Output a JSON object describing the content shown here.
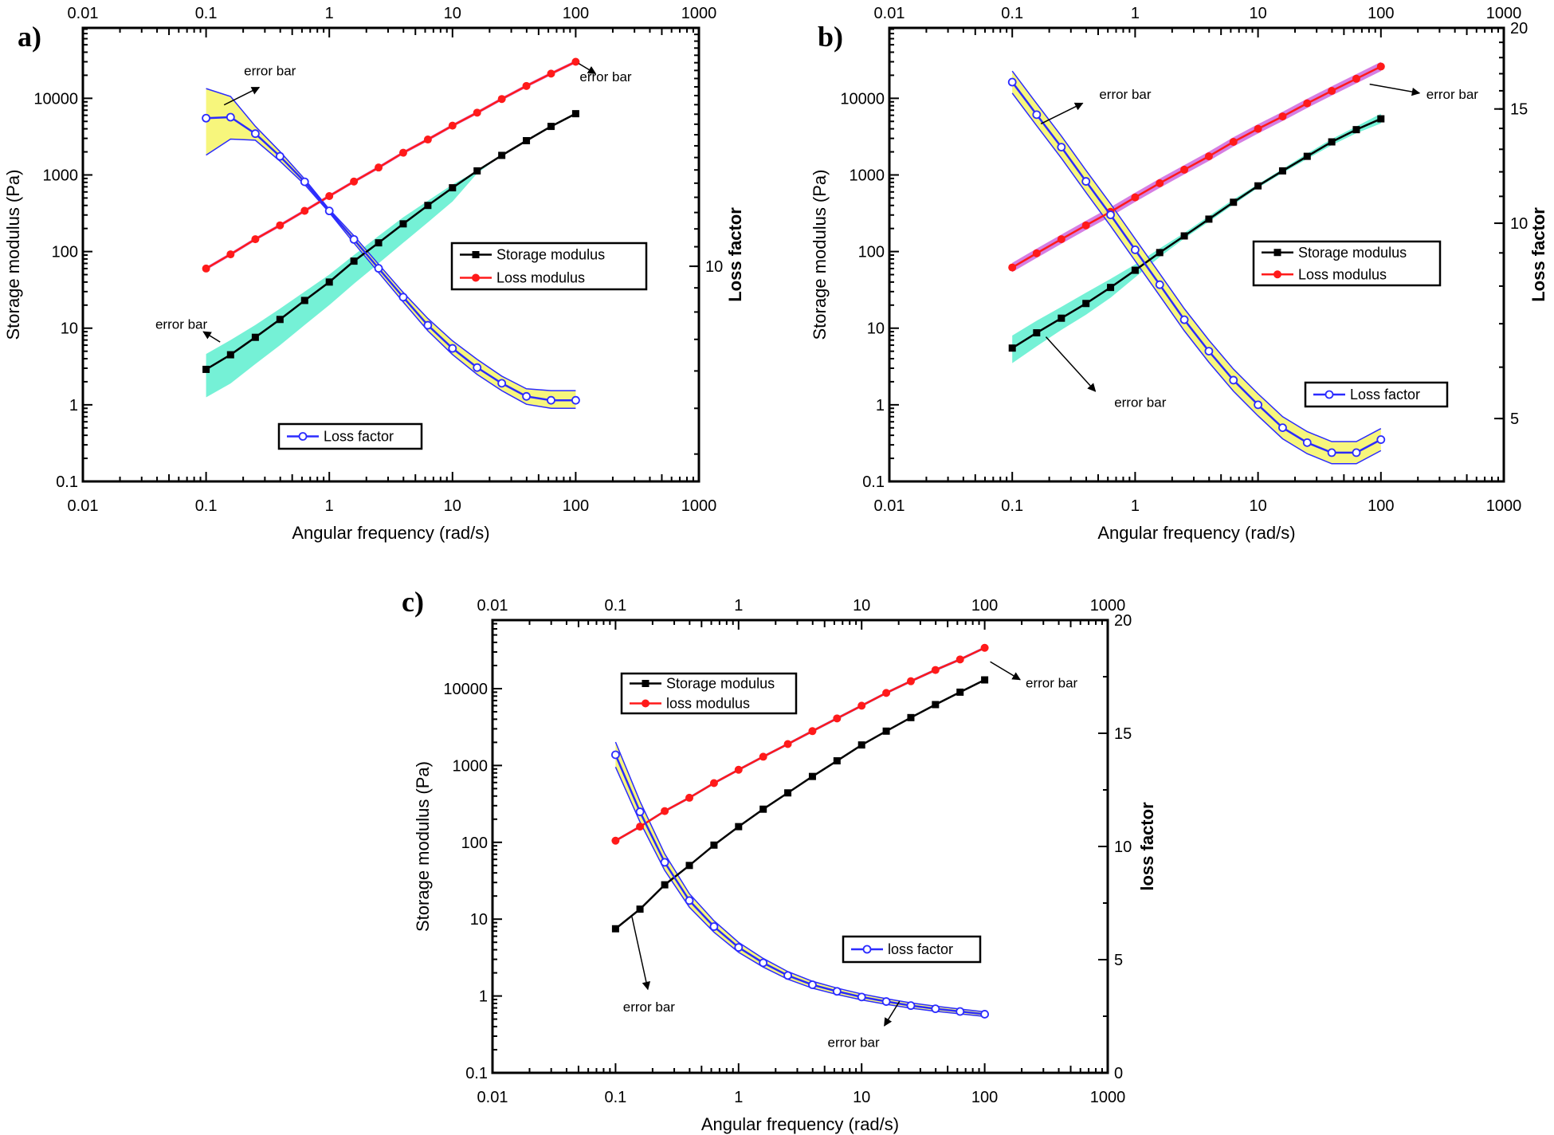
{
  "chart_data": [
    {
      "type": "line",
      "panel_label": "a)",
      "xlabel": "Angular frequency (rad/s)",
      "ylabel": "Storage modulus (Pa)",
      "y2label": "Loss factor",
      "xscale": "log",
      "xlim": [
        0.01,
        1000
      ],
      "xticks": [
        "0.01",
        "0.1",
        "1",
        "10",
        "100",
        "1000"
      ],
      "yscale": "log",
      "ylim": [
        0.1,
        83000
      ],
      "yticks": [
        "0.1",
        "1",
        "10",
        "100",
        "1000",
        "10000"
      ],
      "y2scale": "log",
      "y2lim": [
        3.5,
        32
      ],
      "y2ticks": [
        "10"
      ],
      "x": [
        0.1,
        0.158,
        0.251,
        0.398,
        0.631,
        1,
        1.585,
        2.512,
        3.981,
        6.31,
        10,
        15.85,
        25.12,
        39.81,
        63.1,
        100
      ],
      "series": [
        {
          "name": "Storage modulus",
          "axis": "left",
          "color": "#000000",
          "marker": "square",
          "values": [
            2.9,
            4.5,
            7.6,
            13,
            23,
            40,
            75,
            130,
            230,
            400,
            680,
            1130,
            1800,
            2800,
            4300,
            6300
          ],
          "band": {
            "color": "#66f0d2",
            "edge": "none",
            "upper": [
              4.6,
              7,
              11,
              18,
              30,
              50,
              90,
              160,
              280,
              460,
              750,
              1130,
              1800,
              2800,
              4300,
              6300
            ],
            "lower": [
              1.25,
              1.9,
              3.4,
              6,
              11,
              20,
              38,
              70,
              130,
              240,
              450,
              1050,
              1800,
              2800,
              4300,
              6300
            ]
          }
        },
        {
          "name": "Loss modulus",
          "axis": "left",
          "color": "#ff1a1a",
          "marker": "circle",
          "values": [
            60,
            92,
            145,
            220,
            340,
            530,
            820,
            1250,
            1950,
            2900,
            4400,
            6500,
            9800,
            14500,
            21000,
            30000
          ],
          "band": {
            "color": "#d070e0",
            "edge": "none",
            "factor": 1.05
          }
        },
        {
          "name": "Loss factor",
          "axis": "right",
          "color": "#2b2bff",
          "marker": "open-circle",
          "values": [
            20.6,
            20.7,
            19.1,
            17.1,
            15.1,
            13.1,
            11.4,
            9.9,
            8.6,
            7.5,
            6.7,
            6.1,
            5.65,
            5.3,
            5.2,
            5.2
          ],
          "band": {
            "color": "#f6f56e",
            "edge": "#2b2bff",
            "upper": [
              23.8,
              22.9,
              19.8,
              17.5,
              15.3,
              13.2,
              11.6,
              10.1,
              8.8,
              7.75,
              6.95,
              6.35,
              5.85,
              5.5,
              5.45,
              5.45
            ],
            "lower": [
              17.2,
              18.6,
              18.5,
              16.7,
              14.9,
              13.0,
              11.2,
              9.7,
              8.4,
              7.3,
              6.5,
              5.9,
              5.45,
              5.1,
              5.0,
              5.0
            ]
          }
        }
      ],
      "legends": [
        [
          "Storage modulus",
          "Loss modulus"
        ],
        [
          "Loss factor"
        ]
      ],
      "annotations": [
        {
          "text": "error bar",
          "x": 0.33,
          "y": 23000,
          "arrow_from": [
            0.14,
            8200
          ],
          "arrow_to": [
            0.27,
            13900
          ]
        },
        {
          "text": "error bar",
          "x": 175,
          "y": 19300,
          "arrow_from": [
            106,
            28400
          ],
          "arrow_to": [
            145,
            21000
          ]
        },
        {
          "text": "error bar",
          "x": 0.063,
          "y": 11.3,
          "arrow_from": [
            0.13,
            6.6
          ],
          "arrow_to": [
            0.095,
            9.0
          ]
        }
      ]
    },
    {
      "type": "line",
      "panel_label": "b)",
      "xlabel": "Angular frequency (rad/s)",
      "ylabel": "Storage modulus (Pa)",
      "y2label": "Loss factor",
      "xscale": "log",
      "xlim": [
        0.01,
        1000
      ],
      "xticks": [
        "0.01",
        "0.1",
        "1",
        "10",
        "100",
        "1000"
      ],
      "yscale": "log",
      "ylim": [
        0.1,
        83000
      ],
      "yticks": [
        "0.1",
        "1",
        "10",
        "100",
        "1000",
        "10000"
      ],
      "y2scale": "log",
      "y2lim": [
        4,
        20
      ],
      "y2ticks": [
        "5",
        "10",
        "15",
        "20"
      ],
      "x": [
        0.1,
        0.158,
        0.251,
        0.398,
        0.631,
        1,
        1.585,
        2.512,
        3.981,
        6.31,
        10,
        15.85,
        25.12,
        39.81,
        63.1,
        100
      ],
      "series": [
        {
          "name": "Storage modulus",
          "axis": "left",
          "color": "#000000",
          "marker": "square",
          "values": [
            5.5,
            8.7,
            13.5,
            21,
            34,
            57,
            97,
            160,
            265,
            440,
            720,
            1130,
            1750,
            2700,
            3900,
            5400
          ],
          "band": {
            "color": "#66f0d2",
            "edge": "none",
            "upper": [
              8,
              12.5,
              19,
              29,
              44,
              68,
              110,
              175,
              290,
              480,
              760,
              1200,
              1900,
              2950,
              4300,
              6300
            ],
            "lower": [
              3.5,
              5.8,
              9.5,
              15,
              25,
              46,
              85,
              148,
              245,
              410,
              680,
              1060,
              1620,
              2450,
              3500,
              4700
            ]
          }
        },
        {
          "name": "Loss modulus",
          "axis": "left",
          "color": "#ff1a1a",
          "marker": "circle",
          "values": [
            62,
            95,
            145,
            220,
            330,
            510,
            780,
            1170,
            1750,
            2700,
            4000,
            5800,
            8600,
            12500,
            18000,
            26000
          ],
          "band": {
            "color": "#d070e0",
            "edge": "none",
            "factor": 1.15
          }
        },
        {
          "name": "Loss factor",
          "axis": "right",
          "color": "#2b2bff",
          "marker": "open-circle",
          "values": [
            16.5,
            14.7,
            13.1,
            11.6,
            10.3,
            9.1,
            8.04,
            7.1,
            6.35,
            5.73,
            5.25,
            4.84,
            4.59,
            4.43,
            4.43,
            4.64
          ],
          "band": {
            "color": "#f6f56e",
            "edge": "#2b2bff",
            "factor": 1.04
          }
        }
      ],
      "legends": [
        [
          "Storage modulus",
          "Loss modulus"
        ],
        [
          "Loss factor"
        ]
      ],
      "annotations": [
        {
          "text": "error bar",
          "x": 0.83,
          "y": 11300,
          "arrow_from": [
            0.171,
            4650
          ],
          "arrow_to": [
            0.374,
            8650
          ]
        },
        {
          "text": "error bar",
          "x": 381,
          "y": 11300,
          "arrow_from": [
            81,
            15300
          ],
          "arrow_to": [
            206,
            11700
          ]
        },
        {
          "text": "error bar",
          "x": 1.1,
          "y": 1.08,
          "arrow_from": [
            0.188,
            7.7
          ],
          "arrow_to": [
            0.475,
            1.5
          ]
        }
      ]
    },
    {
      "type": "line",
      "panel_label": "c)",
      "xlabel": "Angular frequency (rad/s)",
      "ylabel": "Storage modulus (Pa)",
      "y2label": "loss factor",
      "xscale": "log",
      "xlim": [
        0.01,
        1000
      ],
      "xticks": [
        "0.01",
        "0.1",
        "1",
        "10",
        "100",
        "1000"
      ],
      "yscale": "log",
      "ylim": [
        0.1,
        78000
      ],
      "yticks": [
        "0.1",
        "1",
        "10",
        "100",
        "1000",
        "10000"
      ],
      "y2scale": "linear",
      "y2lim": [
        0,
        20
      ],
      "y2ticks": [
        "0",
        "5",
        "10",
        "15",
        "20"
      ],
      "x": [
        0.1,
        0.158,
        0.251,
        0.398,
        0.631,
        1,
        1.585,
        2.512,
        3.981,
        6.31,
        10,
        15.85,
        25.12,
        39.81,
        63.1,
        100
      ],
      "series": [
        {
          "name": "Storage modulus",
          "axis": "left",
          "color": "#000000",
          "marker": "square",
          "values": [
            7.5,
            13.5,
            28,
            50,
            92,
            160,
            270,
            440,
            720,
            1150,
            1850,
            2800,
            4200,
            6200,
            9000,
            13000
          ]
        },
        {
          "name": "loss modulus",
          "axis": "left",
          "color": "#ff1a1a",
          "marker": "circle",
          "values": [
            105,
            160,
            255,
            380,
            590,
            880,
            1300,
            1900,
            2800,
            4100,
            6000,
            8800,
            12500,
            17500,
            24000,
            34000
          ],
          "band": {
            "color": "#5a5aff",
            "edge": "none",
            "factor": 1.04
          }
        },
        {
          "name": "loss factor",
          "axis": "right",
          "color": "#2b2bff",
          "marker": "open-circle",
          "values": [
            14.05,
            11.53,
            9.3,
            7.61,
            6.46,
            5.54,
            4.86,
            4.3,
            3.89,
            3.6,
            3.35,
            3.15,
            2.97,
            2.83,
            2.71,
            2.59
          ],
          "band": {
            "color": "#f6f56e",
            "edge": "#2b2bff",
            "factor": 1.04
          }
        }
      ],
      "legends": [
        [
          "Storage modulus",
          "loss modulus"
        ],
        [
          "loss factor"
        ]
      ],
      "annotations": [
        {
          "text": "error bar",
          "x": 350,
          "y": 12000,
          "arrow_from": [
            111,
            22400
          ],
          "arrow_to": [
            194,
            13100
          ]
        },
        {
          "text": "error bar",
          "x": 0.187,
          "y": 0.73,
          "arrow_from": [
            0.136,
            10.7
          ],
          "arrow_to": [
            0.183,
            1.22
          ]
        },
        {
          "text": "error bar",
          "x": 8.6,
          "y": 0.25,
          "arrow_from": [
            20.3,
            0.85
          ],
          "arrow_to": [
            15.3,
            0.41
          ]
        }
      ]
    }
  ]
}
